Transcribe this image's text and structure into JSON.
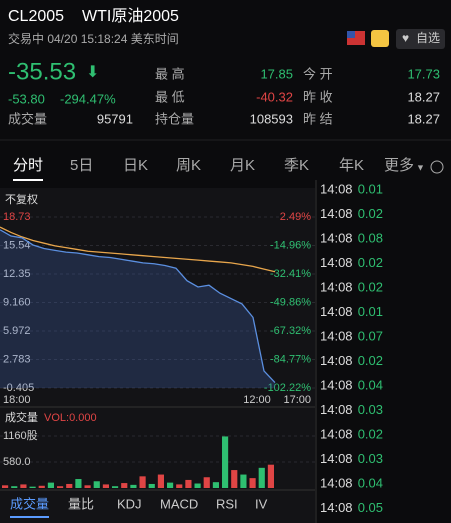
{
  "header": {
    "symbol": "CL2005",
    "name": "WTI原油2005",
    "status": "交易中 04/20 15:18:24 美东时间",
    "watch": "自选"
  },
  "quote": {
    "price": "-35.53",
    "change": "-53.80",
    "change_pct": "-294.47%",
    "volume_label": "成交量",
    "volume": "95791"
  },
  "stats": [
    [
      "最 高",
      "17.85",
      "今 开",
      "17.73"
    ],
    [
      "最 低",
      "-40.32",
      "昨 收",
      "18.27"
    ],
    [
      "持仓量",
      "108593",
      "昨 结",
      "18.27"
    ]
  ],
  "tabs": [
    "分时",
    "5日",
    "日K",
    "周K",
    "月K",
    "季K",
    "年K",
    "更多"
  ],
  "price_chart": {
    "adjust_label": "不复权",
    "yticks": [
      18.73,
      15.54,
      12.35,
      {
        "value": 9.16,
        "label": "9.160"
      },
      5.972,
      2.783,
      -0.405
    ],
    "pct_labels": [
      "2.49%",
      "-14.96%",
      "-32.41%",
      "-49.86%",
      "-67.32%",
      "-84.77%",
      "-102.22%"
    ],
    "x_labels": [
      "18:00",
      "12:00",
      "17:00"
    ],
    "price": [
      17.3,
      16.6,
      16.4,
      15.6,
      15.2,
      15.0,
      14.8,
      14.7,
      14.5,
      14.3,
      14.2,
      14.0,
      13.8,
      13.6,
      13.5,
      13.3,
      13.0,
      11.6,
      10.9,
      11.1,
      10.2,
      9.6,
      9.0,
      7.5,
      1.5,
      0.2
    ],
    "average": [
      17.6,
      17.0,
      16.5,
      16.1,
      15.8,
      15.5,
      15.3,
      15.1,
      14.9,
      14.8,
      14.7,
      14.6,
      14.5,
      14.4,
      14.3,
      14.2,
      14.1,
      14.0,
      13.9,
      13.8,
      13.7,
      13.6,
      13.4,
      13.2,
      12.9,
      12.6
    ],
    "price_color": "#5b8fe0",
    "average_color": "#e8a64c"
  },
  "volume_chart": {
    "title": "成交量",
    "indicator": "VOL:0.000",
    "yticks": [
      {
        "value": 1160,
        "label": "1160股"
      },
      {
        "value": 580,
        "label": "580.0"
      }
    ],
    "values": [
      60,
      40,
      80,
      30,
      50,
      120,
      40,
      90,
      200,
      60,
      150,
      80,
      40,
      110,
      70,
      260,
      90,
      300,
      120,
      80,
      180,
      100,
      240,
      130,
      1150,
      400,
      300,
      220,
      450,
      520
    ],
    "colors": [
      "#e04545",
      "#2fbf71",
      "#e04545",
      "#2fbf71",
      "#e04545",
      "#2fbf71",
      "#e04545",
      "#e04545",
      "#2fbf71",
      "#e04545",
      "#2fbf71",
      "#e04545",
      "#2fbf71",
      "#e04545",
      "#2fbf71",
      "#e04545",
      "#2fbf71",
      "#e04545",
      "#2fbf71",
      "#e04545",
      "#e04545",
      "#2fbf71",
      "#e04545",
      "#2fbf71",
      "#2fbf71",
      "#e04545",
      "#2fbf71",
      "#e04545",
      "#2fbf71",
      "#e04545"
    ]
  },
  "indicator_tabs": [
    "成交量",
    "量比",
    "KDJ",
    "MACD",
    "RSI",
    "IV"
  ],
  "trades": [
    [
      "14:08",
      "0.01"
    ],
    [
      "14:08",
      "0.02"
    ],
    [
      "14:08",
      "0.08"
    ],
    [
      "14:08",
      "0.02"
    ],
    [
      "14:08",
      "0.02"
    ],
    [
      "14:08",
      "0.01"
    ],
    [
      "14:08",
      "0.07"
    ],
    [
      "14:08",
      "0.02"
    ],
    [
      "14:08",
      "0.04"
    ],
    [
      "14:08",
      "0.03"
    ],
    [
      "14:08",
      "0.02"
    ],
    [
      "14:08",
      "0.03"
    ],
    [
      "14:08",
      "0.04"
    ],
    [
      "14:08",
      "0.05"
    ]
  ]
}
